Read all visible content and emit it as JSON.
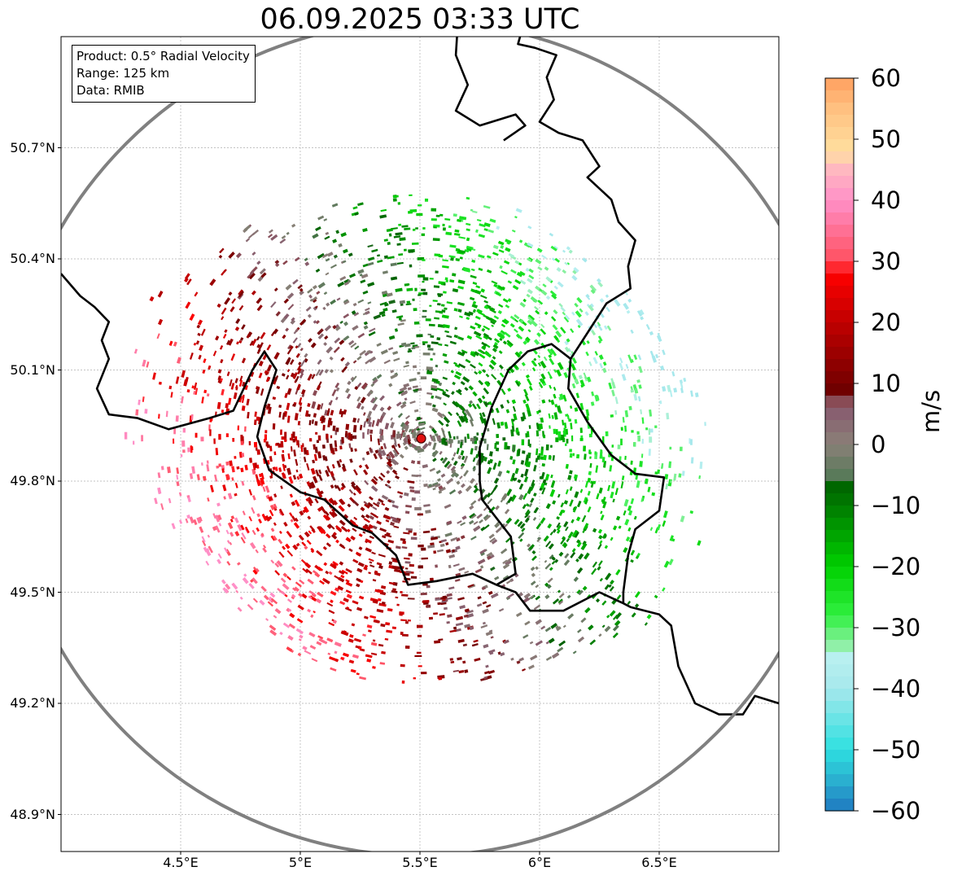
{
  "title": "06.09.2025 03:33 UTC",
  "info": {
    "product": "Product: 0.5° Radial Velocity",
    "range": "Range: 125 km",
    "data": "Data: RMIB"
  },
  "axes": {
    "lat_ticks": [
      {
        "label": "50.7°N",
        "lat": 50.7
      },
      {
        "label": "50.4°N",
        "lat": 50.4
      },
      {
        "label": "50.1°N",
        "lat": 50.1
      },
      {
        "label": "49.8°N",
        "lat": 49.8
      },
      {
        "label": "49.5°N",
        "lat": 49.5
      },
      {
        "label": "49.2°N",
        "lat": 49.2
      },
      {
        "label": "48.9°N",
        "lat": 48.9
      }
    ],
    "lon_ticks": [
      {
        "label": "4.5°E",
        "lon": 4.5
      },
      {
        "label": "5°E",
        "lon": 5.0
      },
      {
        "label": "5.5°E",
        "lon": 5.5
      },
      {
        "label": "6°E",
        "lon": 6.0
      },
      {
        "label": "6.5°E",
        "lon": 6.5
      }
    ],
    "lon_range": [
      4.0,
      7.0
    ],
    "lat_range": [
      48.8,
      51.0
    ],
    "grid": true
  },
  "radar": {
    "lon": 5.505,
    "lat": 49.915,
    "range_km": 125
  },
  "colorbar": {
    "label": "m/s",
    "min": -60,
    "max": 60,
    "ticks": [
      "60",
      "50",
      "40",
      "30",
      "20",
      "10",
      "0",
      "−10",
      "−20",
      "−30",
      "−40",
      "−50",
      "−60"
    ],
    "stops": [
      {
        "v": -60,
        "c": "#1f78c0"
      },
      {
        "v": -55,
        "c": "#2ab0d0"
      },
      {
        "v": -50,
        "c": "#2ee0e0"
      },
      {
        "v": -40,
        "c": "#a6e8ec"
      },
      {
        "v": -35,
        "c": "#b8f0f0"
      },
      {
        "v": -33,
        "c": "#90f0a8"
      },
      {
        "v": -28,
        "c": "#30f040"
      },
      {
        "v": -20,
        "c": "#00d000"
      },
      {
        "v": -10,
        "c": "#007a00"
      },
      {
        "v": -6,
        "c": "#006000"
      },
      {
        "v": -5,
        "c": "#5a7a5a"
      },
      {
        "v": 0,
        "c": "#8a8078"
      },
      {
        "v": 5,
        "c": "#886070"
      },
      {
        "v": 8,
        "c": "#8a4048"
      },
      {
        "v": 9,
        "c": "#700000"
      },
      {
        "v": 20,
        "c": "#c00000"
      },
      {
        "v": 28,
        "c": "#ff0000"
      },
      {
        "v": 30,
        "c": "#ff5060"
      },
      {
        "v": 40,
        "c": "#ff90c8"
      },
      {
        "v": 45,
        "c": "#ffb8c0"
      },
      {
        "v": 48,
        "c": "#ffe0a0"
      },
      {
        "v": 55,
        "c": "#ffc080"
      },
      {
        "v": 60,
        "c": "#ffa060"
      }
    ]
  },
  "borders": [
    [
      [
        4.0,
        50.36
      ],
      [
        4.08,
        50.3
      ],
      [
        4.14,
        50.27
      ],
      [
        4.2,
        50.23
      ],
      [
        4.17,
        50.18
      ],
      [
        4.2,
        50.13
      ],
      [
        4.15,
        50.05
      ],
      [
        4.2,
        49.98
      ],
      [
        4.32,
        49.97
      ],
      [
        4.45,
        49.94
      ],
      [
        4.62,
        49.97
      ],
      [
        4.72,
        49.99
      ],
      [
        4.8,
        50.1
      ],
      [
        4.85,
        50.15
      ],
      [
        4.9,
        50.1
      ],
      [
        4.85,
        50.0
      ],
      [
        4.82,
        49.92
      ],
      [
        4.87,
        49.83
      ],
      [
        5.0,
        49.77
      ],
      [
        5.1,
        49.75
      ],
      [
        5.22,
        49.68
      ],
      [
        5.3,
        49.66
      ],
      [
        5.4,
        49.6
      ],
      [
        5.45,
        49.52
      ],
      [
        5.57,
        49.53
      ],
      [
        5.72,
        49.55
      ],
      [
        5.82,
        49.52
      ],
      [
        5.9,
        49.5
      ],
      [
        5.96,
        49.45
      ],
      [
        6.1,
        49.45
      ],
      [
        6.25,
        49.5
      ],
      [
        6.35,
        49.47
      ],
      [
        6.38,
        49.46
      ],
      [
        6.5,
        49.44
      ],
      [
        6.55,
        49.41
      ],
      [
        6.58,
        49.3
      ],
      [
        6.65,
        49.2
      ],
      [
        6.75,
        49.17
      ],
      [
        6.85,
        49.17
      ],
      [
        6.9,
        49.22
      ],
      [
        7.0,
        49.2
      ]
    ],
    [
      [
        5.82,
        49.52
      ],
      [
        5.9,
        49.55
      ],
      [
        5.88,
        49.65
      ],
      [
        5.76,
        49.75
      ],
      [
        5.75,
        49.8
      ],
      [
        5.75,
        49.89
      ],
      [
        5.8,
        50.0
      ],
      [
        5.87,
        50.1
      ],
      [
        5.95,
        50.15
      ],
      [
        6.05,
        50.17
      ],
      [
        6.13,
        50.13
      ],
      [
        6.12,
        50.05
      ],
      [
        6.2,
        49.96
      ],
      [
        6.3,
        49.87
      ],
      [
        6.4,
        49.82
      ],
      [
        6.52,
        49.81
      ],
      [
        6.5,
        49.72
      ],
      [
        6.4,
        49.67
      ],
      [
        6.37,
        49.6
      ],
      [
        6.35,
        49.5
      ],
      [
        6.35,
        49.47
      ]
    ],
    [
      [
        6.13,
        50.13
      ],
      [
        6.2,
        50.2
      ],
      [
        6.28,
        50.28
      ],
      [
        6.38,
        50.32
      ],
      [
        6.37,
        50.38
      ],
      [
        6.4,
        50.45
      ],
      [
        6.33,
        50.5
      ],
      [
        6.3,
        50.56
      ],
      [
        6.2,
        50.62
      ],
      [
        6.25,
        50.65
      ],
      [
        6.18,
        50.72
      ],
      [
        6.08,
        50.74
      ],
      [
        6.0,
        50.77
      ],
      [
        6.06,
        50.83
      ],
      [
        6.03,
        50.89
      ],
      [
        6.07,
        50.95
      ],
      [
        5.98,
        50.97
      ],
      [
        5.91,
        50.98
      ],
      [
        5.94,
        51.05
      ]
    ],
    [
      [
        5.66,
        51.05
      ],
      [
        5.65,
        50.95
      ],
      [
        5.7,
        50.87
      ],
      [
        5.65,
        50.8
      ],
      [
        5.75,
        50.76
      ],
      [
        5.9,
        50.79
      ],
      [
        5.94,
        50.76
      ],
      [
        5.85,
        50.72
      ]
    ]
  ]
}
